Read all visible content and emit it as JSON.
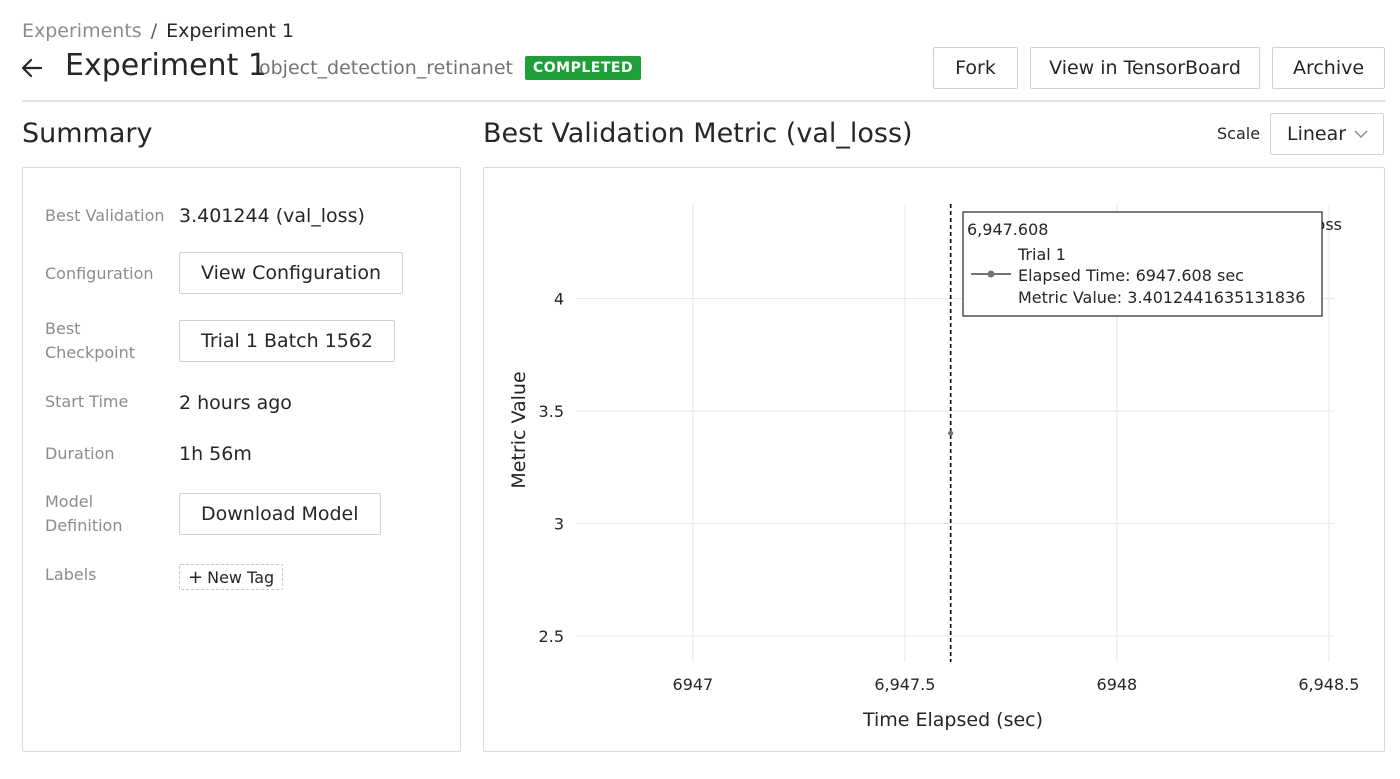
{
  "breadcrumb": {
    "root": "Experiments",
    "separator": "/",
    "current": "Experiment 1"
  },
  "header": {
    "title": "Experiment 1",
    "experiment_name": "object_detection_retinanet",
    "status": "COMPLETED",
    "status_color": "#1f9e3a",
    "buttons": {
      "fork": "Fork",
      "tensorboard": "View in TensorBoard",
      "archive": "Archive"
    }
  },
  "summary": {
    "title": "Summary",
    "rows": {
      "best_validation": {
        "label": "Best Validation",
        "value": "3.401244 (val_loss)"
      },
      "configuration": {
        "label": "Configuration",
        "button": "View Configuration"
      },
      "best_checkpoint": {
        "label": "Best Checkpoint",
        "button": "Trial 1 Batch 1562"
      },
      "start_time": {
        "label": "Start Time",
        "value": "2 hours ago"
      },
      "duration": {
        "label": "Duration",
        "value": "1h 56m"
      },
      "model_definition": {
        "label": "Model Definition",
        "button": "Download Model"
      },
      "labels": {
        "label": "Labels",
        "new_tag": "New Tag"
      }
    }
  },
  "chart_section": {
    "title": "Best Validation Metric (val_loss)",
    "scale_label": "Scale",
    "scale_value": "Linear"
  },
  "chart_data": {
    "type": "line",
    "xlabel": "Time Elapsed (sec)",
    "ylabel": "Metric Value",
    "xlim": [
      6946.63,
      6948.63
    ],
    "ylim": [
      2.385,
      4.42
    ],
    "x_ticks": [
      {
        "value": 6947,
        "label": "6947"
      },
      {
        "value": 6947.5,
        "label": "6,947.5"
      },
      {
        "value": 6948,
        "label": "6948"
      },
      {
        "value": 6948.5,
        "label": "6,948.5"
      }
    ],
    "y_ticks": [
      {
        "value": 2.5,
        "label": "2.5"
      },
      {
        "value": 3,
        "label": "3"
      },
      {
        "value": 3.5,
        "label": "3.5"
      },
      {
        "value": 4,
        "label": "4"
      }
    ],
    "grid": true,
    "series": [
      {
        "name": "Trial 1",
        "color": "#737373",
        "points": [
          {
            "x": 6947.608,
            "y": 3.4012441635131836
          }
        ]
      }
    ],
    "cursor_x": 6947.608,
    "legend_fragment": "oss",
    "tooltip": {
      "header": "6,947.608",
      "series_name": "Trial 1",
      "elapsed_line": "Elapsed Time: 6947.608 sec",
      "metric_line": "Metric Value: 3.4012441635131836"
    }
  }
}
